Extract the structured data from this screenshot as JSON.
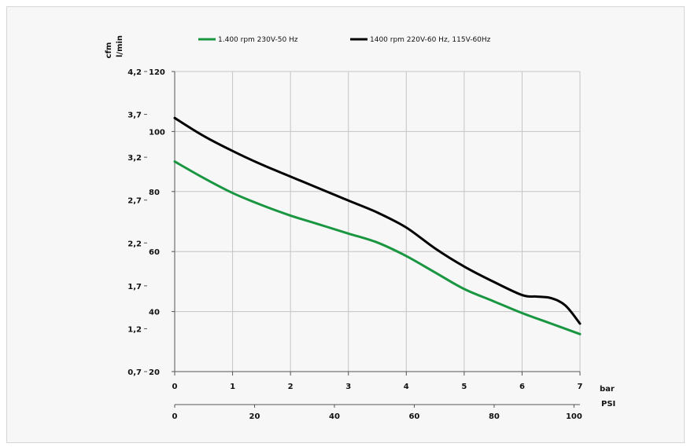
{
  "chart_data": {
    "type": "line",
    "legend": [
      {
        "label": "1.400 rpm 230V-50 Hz",
        "color": "#1a9641"
      },
      {
        "label": "1400 rpm 220V-60 Hz, 115V-60Hz",
        "color": "#000000"
      }
    ],
    "legend_position": "top",
    "grid": true,
    "x_axis_primary": {
      "unit": "bar",
      "range": [
        0,
        7
      ],
      "ticks": [
        "0",
        "1",
        "2",
        "3",
        "4",
        "5",
        "6",
        "7"
      ]
    },
    "x_axis_secondary": {
      "unit": "PSI",
      "range": [
        0,
        101.5
      ],
      "ticks": [
        "0",
        "20",
        "40",
        "60",
        "80",
        "100"
      ]
    },
    "y_axis_left_outer": {
      "unit": "cfm",
      "ticks": [
        "4,2",
        "3,7",
        "3,2",
        "2,7",
        "2,2",
        "1,7",
        "1,2",
        "0,7"
      ]
    },
    "y_axis_left_inner": {
      "unit": "l/min",
      "range": [
        20,
        120
      ],
      "ticks": [
        "120",
        "100",
        "80",
        "60",
        "40",
        "20"
      ]
    },
    "series": [
      {
        "color": "#1a9641",
        "x": [
          0,
          0.5,
          1,
          1.5,
          2,
          2.5,
          3,
          3.5,
          4,
          4.5,
          5,
          5.5,
          6,
          6.5,
          7
        ],
        "values": [
          90,
          84.5,
          79.5,
          75.5,
          72,
          69,
          66,
          63,
          58.5,
          53,
          47.5,
          43.5,
          39.5,
          36,
          32.5
        ]
      },
      {
        "color": "#000000",
        "x": [
          0,
          0.5,
          1,
          1.5,
          2,
          2.5,
          3,
          3.5,
          4,
          4.5,
          5,
          5.5,
          6,
          6.25,
          6.5,
          6.75,
          7
        ],
        "values": [
          104.5,
          98.5,
          93.5,
          89,
          85,
          81,
          77,
          73,
          68,
          61,
          55,
          50,
          45.5,
          45,
          44.5,
          42,
          36
        ]
      }
    ]
  }
}
